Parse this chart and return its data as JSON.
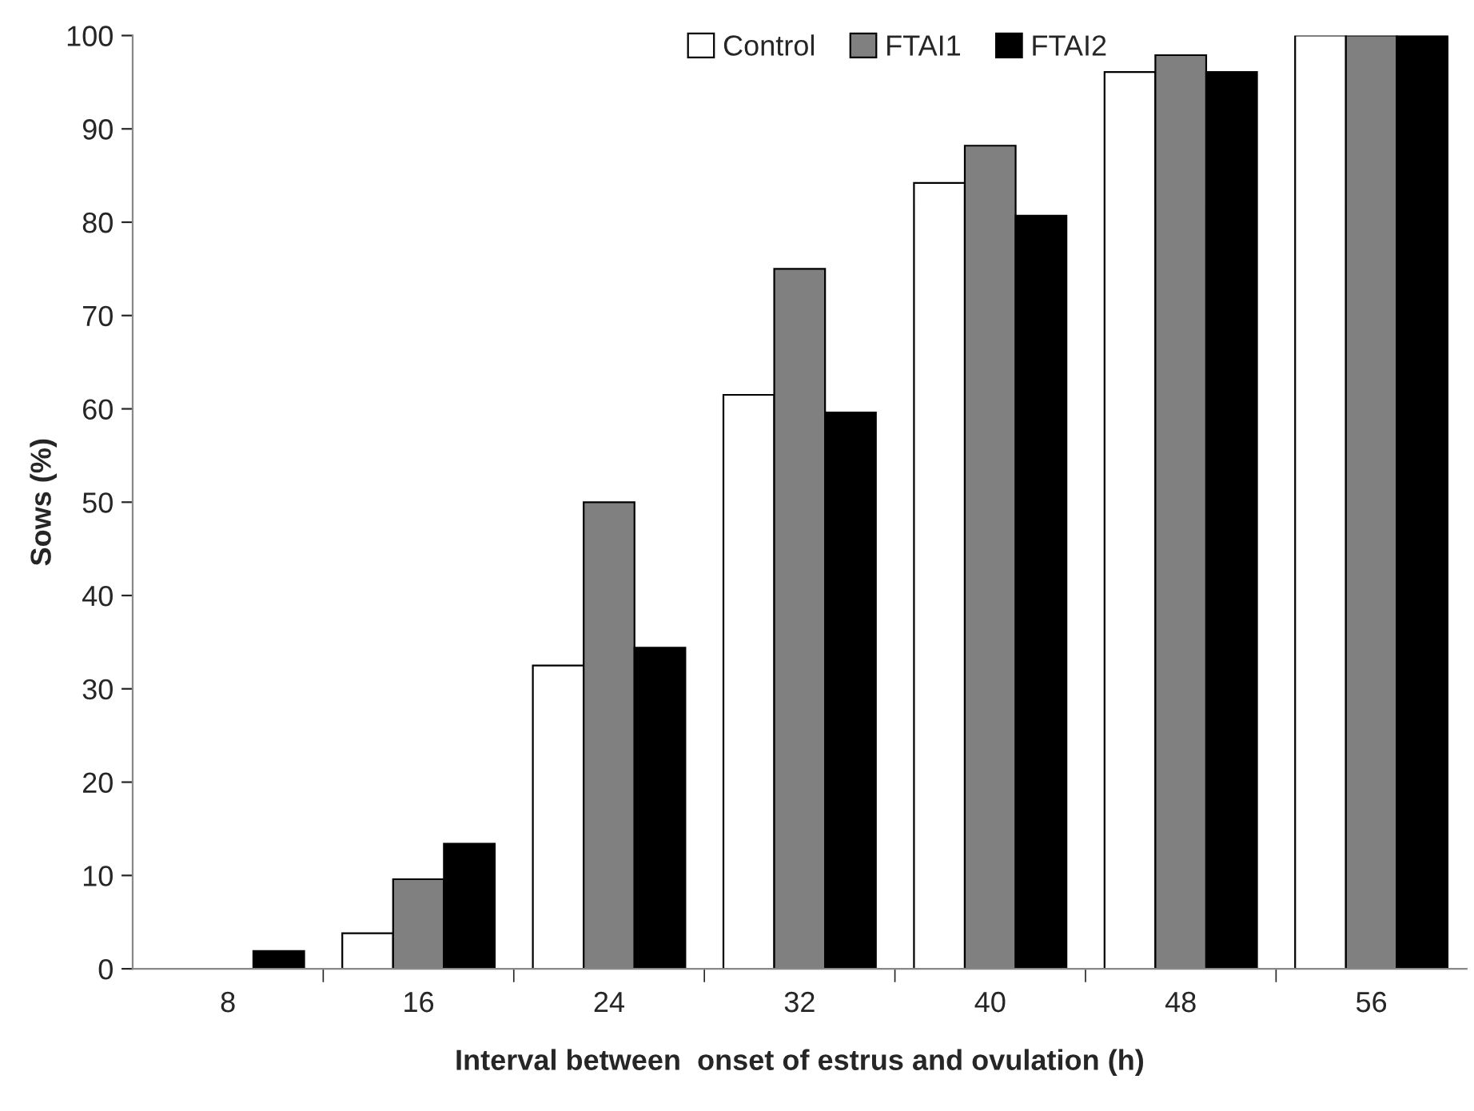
{
  "chart_data": {
    "type": "bar",
    "xlabel": "Interval between  onset of estrus and ovulation (h)",
    "ylabel": "Sows (%)",
    "categories": [
      "8",
      "16",
      "24",
      "32",
      "40",
      "48",
      "56"
    ],
    "series": [
      {
        "name": "Control",
        "color": "#ffffff",
        "values": [
          0,
          3.8,
          32.5,
          61.5,
          84.2,
          96.1,
          100
        ]
      },
      {
        "name": "FTAI1",
        "color": "#808080",
        "values": [
          0,
          9.6,
          50,
          75,
          88.2,
          97.9,
          100
        ]
      },
      {
        "name": "FTAI2",
        "color": "#000000",
        "values": [
          1.9,
          13.4,
          34.4,
          59.6,
          80.7,
          96.1,
          100
        ]
      }
    ],
    "ylim": [
      0,
      100
    ],
    "yticks": [
      0,
      10,
      20,
      30,
      40,
      50,
      60,
      70,
      80,
      90,
      100
    ],
    "grid": false,
    "legend": "top right"
  }
}
